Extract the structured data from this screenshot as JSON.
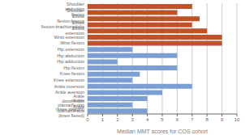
{
  "chart_data": {
    "type": "bar",
    "orientation": "horizontal",
    "xlabel": "Median MMT scores for COS cohort",
    "categories": [
      "Ankle plantarflexion (knee flexed)",
      "Ankle plantarflexion (knee straight)",
      "Ankle dorsiflexion",
      "Ankle aversion",
      "Ankle inversion",
      "Knee extension",
      "Knee flexion",
      "Hip flexion",
      "Hip adduction",
      "Hip abduction",
      "Hip extension",
      "Wrist flexion",
      "Wrist extension",
      "Elbow extension",
      "Elbow flexion-brachioradialis",
      "Elbow flexion-biceps",
      "Shoulder flexion",
      "Shoulder abduction"
    ],
    "values": [
      4,
      3,
      4,
      5,
      7,
      3,
      3.5,
      6,
      2,
      6,
      3,
      9,
      9,
      8,
      7,
      7.5,
      6,
      7
    ],
    "colors": [
      "#7b9fd4",
      "#7b9fd4",
      "#7b9fd4",
      "#7b9fd4",
      "#7b9fd4",
      "#7b9fd4",
      "#7b9fd4",
      "#7b9fd4",
      "#7b9fd4",
      "#7b9fd4",
      "#7b9fd4",
      "#c0522a",
      "#c0522a",
      "#c0522a",
      "#c0522a",
      "#c0522a",
      "#c0522a",
      "#c0522a"
    ],
    "xlim": [
      0,
      10
    ],
    "xticks": [
      0,
      1,
      2,
      3,
      4,
      5,
      6,
      7,
      8,
      9,
      10
    ],
    "grid": true
  }
}
